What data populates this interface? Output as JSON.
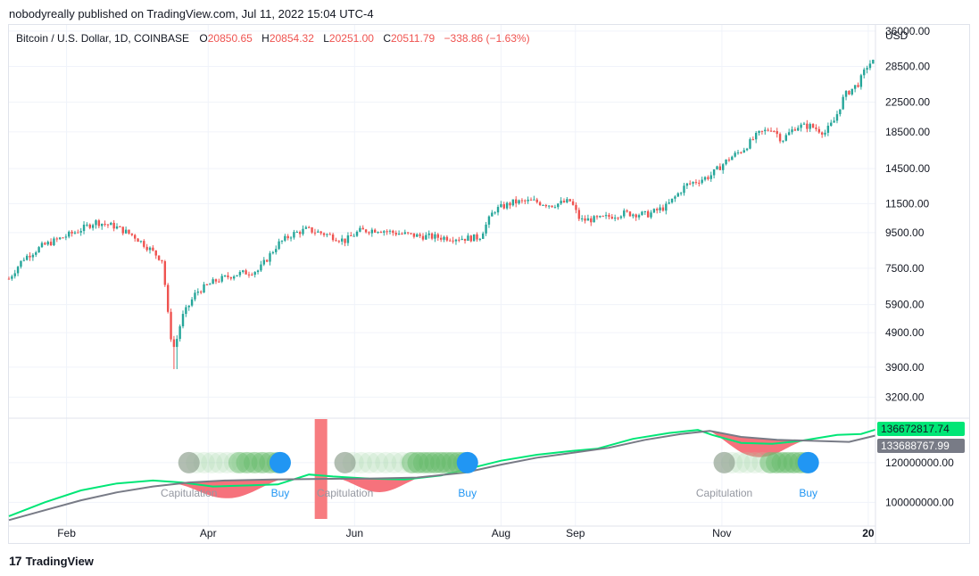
{
  "header": {
    "publisher_line": "nobodyreally published on TradingView.com, Jul 11, 2022 15:04 UTC-4"
  },
  "legend": {
    "symbol": "Bitcoin / U.S. Dollar, 1D, COINBASE",
    "o_label": "O",
    "o_value": "20850.65",
    "h_label": "H",
    "h_value": "20854.32",
    "l_label": "L",
    "l_value": "20251.00",
    "c_label": "C",
    "c_value": "20511.79",
    "change": "−338.86 (−1.63%)"
  },
  "footer": {
    "logo": "17",
    "brand": "TradingView"
  },
  "colors": {
    "up": "#26a69a",
    "down": "#ef5350",
    "green_line": "#00e676",
    "gray_line": "#787b86",
    "fill_red": "#f23645",
    "buy_blue": "#2196f3",
    "grid": "#f0f3fa"
  },
  "chart_data": [
    {
      "type": "candlestick",
      "title": "Bitcoin / U.S. Dollar, 1D, COINBASE",
      "ylabel": "USD",
      "scale": "log",
      "ylim": [
        2800,
        37500
      ],
      "y_ticks": [
        3200,
        3900,
        4900,
        5900,
        7500,
        9500,
        11500,
        14500,
        18500,
        22500,
        28500,
        36000
      ],
      "y_tick_labels": [
        "3200.00",
        "3900.00",
        "4900.00",
        "5900.00",
        "7500.00",
        "9500.00",
        "11500.00",
        "14500.00",
        "18500.00",
        "22500.00",
        "28500.00",
        "36000.00"
      ],
      "x_tick_labels": [
        {
          "label": "Feb",
          "day": 24
        },
        {
          "label": "Apr",
          "day": 83
        },
        {
          "label": "Jun",
          "day": 144
        },
        {
          "label": "Aug",
          "day": 205
        },
        {
          "label": "Sep",
          "day": 236
        },
        {
          "label": "Nov",
          "day": 297
        },
        {
          "label": "20",
          "day": 358
        }
      ],
      "date_range": [
        "2020-01-08",
        "2021-01-03"
      ],
      "price_path": [
        {
          "day": 0,
          "price": 7000
        },
        {
          "day": 6,
          "price": 8000
        },
        {
          "day": 14,
          "price": 8700
        },
        {
          "day": 24,
          "price": 9300
        },
        {
          "day": 30,
          "price": 9700
        },
        {
          "day": 36,
          "price": 10200
        },
        {
          "day": 44,
          "price": 9900
        },
        {
          "day": 52,
          "price": 9300
        },
        {
          "day": 58,
          "price": 8600
        },
        {
          "day": 64,
          "price": 7900
        },
        {
          "day": 67,
          "price": 4900
        },
        {
          "day": 69,
          "price": 4400
        },
        {
          "day": 72,
          "price": 5400
        },
        {
          "day": 78,
          "price": 6400
        },
        {
          "day": 86,
          "price": 6900
        },
        {
          "day": 94,
          "price": 7200
        },
        {
          "day": 104,
          "price": 7400
        },
        {
          "day": 112,
          "price": 8800
        },
        {
          "day": 118,
          "price": 9400
        },
        {
          "day": 124,
          "price": 9700
        },
        {
          "day": 132,
          "price": 9400
        },
        {
          "day": 140,
          "price": 9000
        },
        {
          "day": 146,
          "price": 9600
        },
        {
          "day": 154,
          "price": 9700
        },
        {
          "day": 160,
          "price": 9500
        },
        {
          "day": 170,
          "price": 9300
        },
        {
          "day": 180,
          "price": 9200
        },
        {
          "day": 190,
          "price": 9150
        },
        {
          "day": 196,
          "price": 9200
        },
        {
          "day": 202,
          "price": 11000
        },
        {
          "day": 210,
          "price": 11600
        },
        {
          "day": 218,
          "price": 11700
        },
        {
          "day": 226,
          "price": 11400
        },
        {
          "day": 234,
          "price": 11700
        },
        {
          "day": 238,
          "price": 10300
        },
        {
          "day": 246,
          "price": 10400
        },
        {
          "day": 256,
          "price": 10800
        },
        {
          "day": 266,
          "price": 10700
        },
        {
          "day": 274,
          "price": 11300
        },
        {
          "day": 282,
          "price": 13000
        },
        {
          "day": 292,
          "price": 13800
        },
        {
          "day": 300,
          "price": 15500
        },
        {
          "day": 306,
          "price": 16500
        },
        {
          "day": 312,
          "price": 18200
        },
        {
          "day": 318,
          "price": 19000
        },
        {
          "day": 322,
          "price": 17500
        },
        {
          "day": 328,
          "price": 19200
        },
        {
          "day": 334,
          "price": 19200
        },
        {
          "day": 340,
          "price": 18400
        },
        {
          "day": 344,
          "price": 20000
        },
        {
          "day": 348,
          "price": 23500
        },
        {
          "day": 354,
          "price": 25500
        },
        {
          "day": 358,
          "price": 29000
        },
        {
          "day": 361,
          "price": 29500
        }
      ]
    },
    {
      "type": "line",
      "title": "",
      "ylim": [
        88000000,
        142000000
      ],
      "y_ticks": [
        100000000,
        120000000
      ],
      "y_tick_labels": [
        "100000000.00",
        "120000000.00"
      ],
      "last_value_labels": [
        "136672817.74",
        "133688767.99"
      ],
      "series": [
        {
          "name": "",
          "color_key": "green_line",
          "points": [
            {
              "day": 0,
              "value": 93000000
            },
            {
              "day": 15,
              "value": 100000000
            },
            {
              "day": 30,
              "value": 106000000
            },
            {
              "day": 45,
              "value": 109500000
            },
            {
              "day": 60,
              "value": 111000000
            },
            {
              "day": 72,
              "value": 110000000
            },
            {
              "day": 85,
              "value": 108000000
            },
            {
              "day": 100,
              "value": 108500000
            },
            {
              "day": 112,
              "value": 109000000
            },
            {
              "day": 125,
              "value": 114000000
            },
            {
              "day": 135,
              "value": 113000000
            },
            {
              "day": 150,
              "value": 112000000
            },
            {
              "day": 165,
              "value": 111500000
            },
            {
              "day": 180,
              "value": 113500000
            },
            {
              "day": 195,
              "value": 118000000
            },
            {
              "day": 205,
              "value": 121000000
            },
            {
              "day": 220,
              "value": 124000000
            },
            {
              "day": 235,
              "value": 126000000
            },
            {
              "day": 245,
              "value": 127000000
            },
            {
              "day": 260,
              "value": 132000000
            },
            {
              "day": 275,
              "value": 135000000
            },
            {
              "day": 287,
              "value": 136500000
            },
            {
              "day": 293,
              "value": 134000000
            },
            {
              "day": 305,
              "value": 130000000
            },
            {
              "day": 318,
              "value": 129500000
            },
            {
              "day": 330,
              "value": 131000000
            },
            {
              "day": 345,
              "value": 134000000
            },
            {
              "day": 355,
              "value": 134500000
            },
            {
              "day": 361,
              "value": 136672817.74
            }
          ]
        },
        {
          "name": "",
          "color_key": "gray_line",
          "points": [
            {
              "day": 0,
              "value": 91000000
            },
            {
              "day": 15,
              "value": 96000000
            },
            {
              "day": 30,
              "value": 101000000
            },
            {
              "day": 45,
              "value": 105000000
            },
            {
              "day": 60,
              "value": 108000000
            },
            {
              "day": 75,
              "value": 110000000
            },
            {
              "day": 90,
              "value": 111000000
            },
            {
              "day": 110,
              "value": 111500000
            },
            {
              "day": 130,
              "value": 111800000
            },
            {
              "day": 150,
              "value": 112000000
            },
            {
              "day": 170,
              "value": 112500000
            },
            {
              "day": 190,
              "value": 115000000
            },
            {
              "day": 205,
              "value": 119000000
            },
            {
              "day": 220,
              "value": 122500000
            },
            {
              "day": 235,
              "value": 125000000
            },
            {
              "day": 250,
              "value": 127500000
            },
            {
              "day": 265,
              "value": 131500000
            },
            {
              "day": 280,
              "value": 134500000
            },
            {
              "day": 292,
              "value": 136000000
            },
            {
              "day": 305,
              "value": 133000000
            },
            {
              "day": 320,
              "value": 131500000
            },
            {
              "day": 335,
              "value": 131000000
            },
            {
              "day": 350,
              "value": 130500000
            },
            {
              "day": 361,
              "value": 133688767.99
            }
          ]
        }
      ],
      "red_fill_regions": [
        {
          "start": 70,
          "end": 113,
          "depth": 9000000
        },
        {
          "start": 138,
          "end": 171,
          "depth": 7000000
        },
        {
          "start": 292,
          "end": 331,
          "depth": 9500000
        }
      ],
      "marker_groups": [
        {
          "start_day": 75,
          "end_day": 113,
          "level": 120000000,
          "faint_count": 13,
          "dense_count": 6,
          "label_left": "Capitulation",
          "label_left_day": 75,
          "label_right": "Buy",
          "label_right_day": 113
        },
        {
          "start_day": 140,
          "end_day": 191,
          "level": 120000000,
          "faint_count": 16,
          "dense_count": 10,
          "label_left": "Capitulation",
          "label_left_day": 140,
          "label_right": "Buy",
          "label_right_day": 191
        },
        {
          "start_day": 298,
          "end_day": 333,
          "level": 120000000,
          "faint_count": 12,
          "dense_count": 7,
          "label_left": "Capitulation",
          "label_left_day": 298,
          "label_right": "Buy",
          "label_right_day": 333
        }
      ],
      "vertical_bar_day": 130
    }
  ]
}
